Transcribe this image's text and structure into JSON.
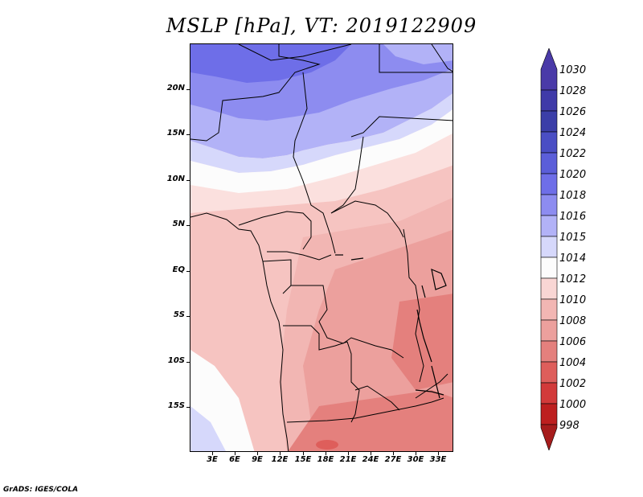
{
  "title": "MSLP [hPa], VT: 2019122909",
  "footer": "GrADS: IGES/COLA",
  "map": {
    "lat_labels": [
      "20N",
      "15N",
      "10N",
      "5N",
      "EQ",
      "5S",
      "10S",
      "15S"
    ],
    "lon_labels": [
      "3E",
      "6E",
      "9E",
      "12E",
      "15E",
      "18E",
      "21E",
      "24E",
      "27E",
      "30E",
      "33E"
    ]
  },
  "colorbar": {
    "labels": [
      "1030",
      "1028",
      "1026",
      "1024",
      "1022",
      "1020",
      "1018",
      "1016",
      "1015",
      "1014",
      "1012",
      "1010",
      "1008",
      "1006",
      "1004",
      "1002",
      "1000",
      "998"
    ],
    "colors": [
      "#4a3aa8",
      "#3f3aa8",
      "#3b3ea8",
      "#4a4ec4",
      "#5b5ed9",
      "#6e6ee8",
      "#8d8cf0",
      "#b2b2f7",
      "#d6d8fb",
      "#fcfcfc",
      "#f9d6d4",
      "#f2b6b3",
      "#eca09d",
      "#e4807d",
      "#de5e5b",
      "#d23a3a",
      "#bd1f1f",
      "#a61c1c"
    ]
  }
}
